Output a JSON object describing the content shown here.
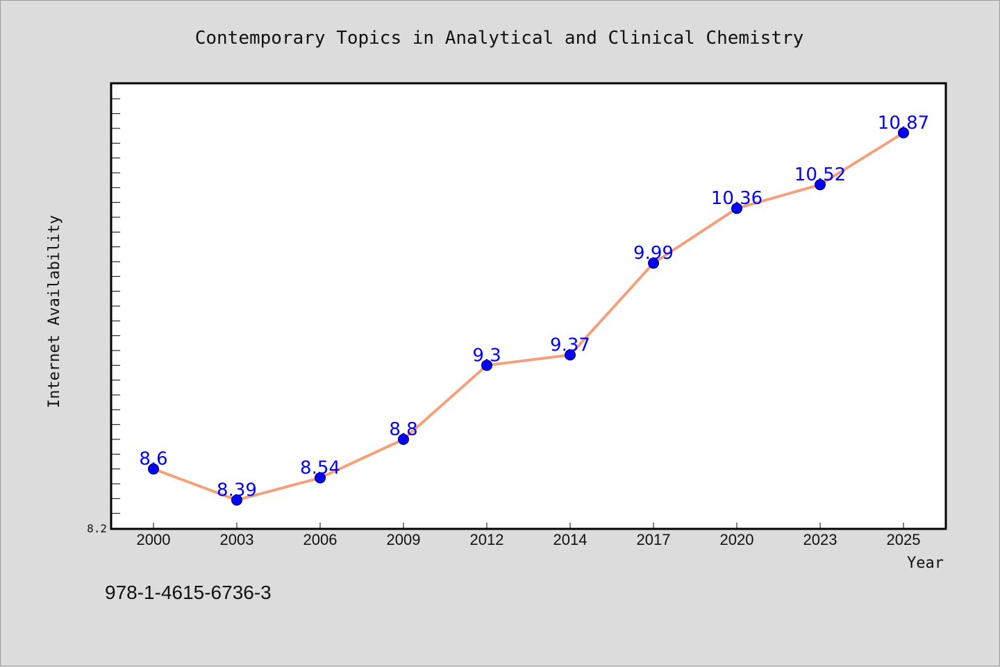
{
  "chart_data": {
    "type": "line",
    "title": "Contemporary Topics in Analytical and Clinical Chemistry",
    "xlabel": "Year",
    "ylabel": "Internet Availability",
    "categories": [
      "2000",
      "2003",
      "2006",
      "2009",
      "2012",
      "2014",
      "2017",
      "2020",
      "2023",
      "2025"
    ],
    "series": [
      {
        "values": [
          8.6,
          8.39,
          8.54,
          8.8,
          9.3,
          9.37,
          9.99,
          10.36,
          10.52,
          10.87
        ],
        "labels": [
          "8.6",
          "8.39",
          "8.54",
          "8.8",
          "9.3",
          "9.37",
          "9.99",
          "10.36",
          "10.52",
          "10.87"
        ]
      }
    ],
    "ylim": [
      8.2,
      11.2
    ],
    "y_tick_labels": [
      "8.2"
    ],
    "grid": false,
    "colors": {
      "line": "#f4a07a",
      "marker": "#0000ff",
      "data_label": "#0000ff",
      "plot_background": "#ffffff",
      "page_background": "#dcdcdc"
    }
  },
  "footer": {
    "isbn": "978-1-4615-6736-3"
  }
}
